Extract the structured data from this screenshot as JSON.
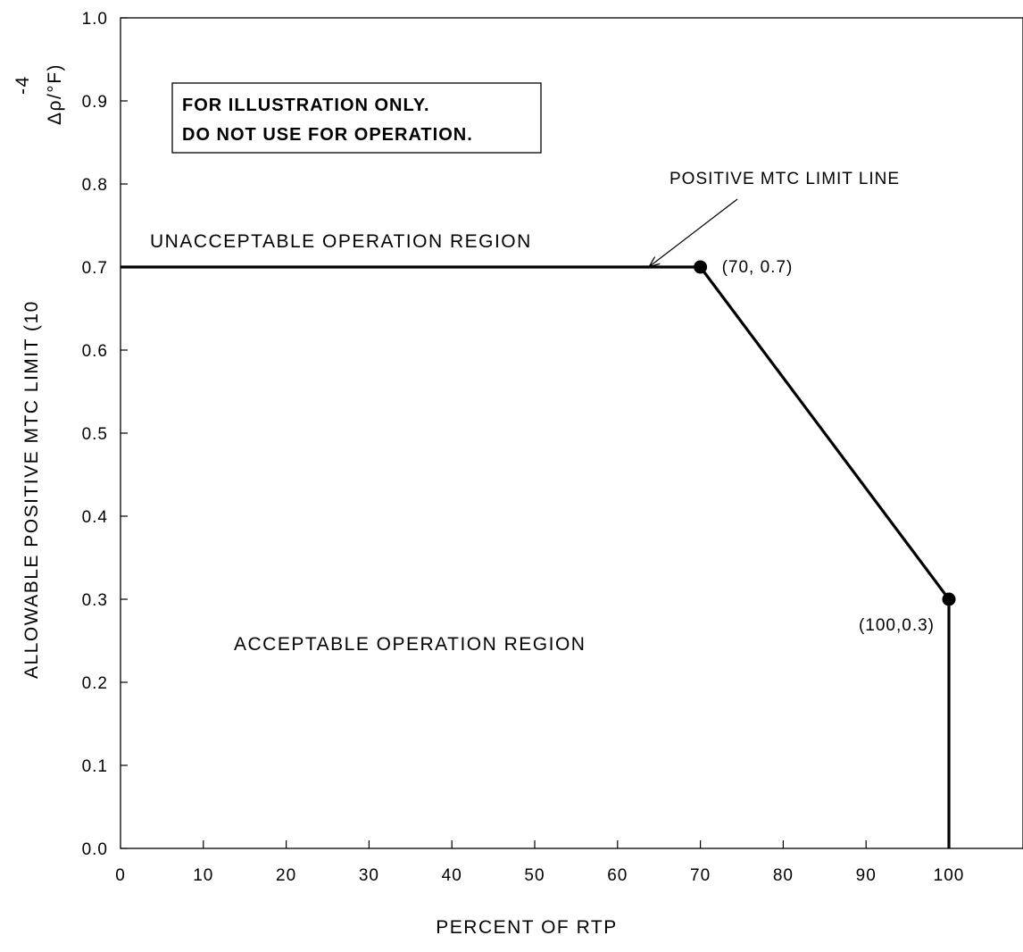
{
  "chart_data": {
    "type": "line",
    "x": [
      0,
      70,
      100,
      100
    ],
    "y": [
      0.7,
      0.7,
      0.3,
      0.0
    ],
    "xlim": [
      0,
      110
    ],
    "ylim": [
      0,
      1.0
    ],
    "xticks": [
      "0",
      "10",
      "20",
      "30",
      "40",
      "50",
      "60",
      "70",
      "80",
      "90",
      "100"
    ],
    "yticks": [
      "0.0",
      "0.1",
      "0.2",
      "0.3",
      "0.4",
      "0.5",
      "0.6",
      "0.7",
      "0.8",
      "0.9",
      "1.0"
    ],
    "xlabel": "PERCENT OF RTP",
    "ylabel": "ALLOWABLE POSITIVE MTC LIMIT (10",
    "ylabel_exponent": "-4",
    "ylabel_unit": "Δρ/°F)",
    "markers": [
      {
        "x": 70,
        "y": 0.7,
        "label": "(70, 0.7)"
      },
      {
        "x": 100,
        "y": 0.3,
        "label": "(100,0.3)"
      }
    ],
    "grid": false,
    "notice": [
      "FOR ILLUSTRATION ONLY.",
      "DO NOT USE FOR OPERATION."
    ],
    "annotations": {
      "limit_line": "POSITIVE MTC LIMIT LINE",
      "unacceptable": "UNACCEPTABLE OPERATION REGION",
      "acceptable": "ACCEPTABLE OPERATION REGION"
    }
  }
}
